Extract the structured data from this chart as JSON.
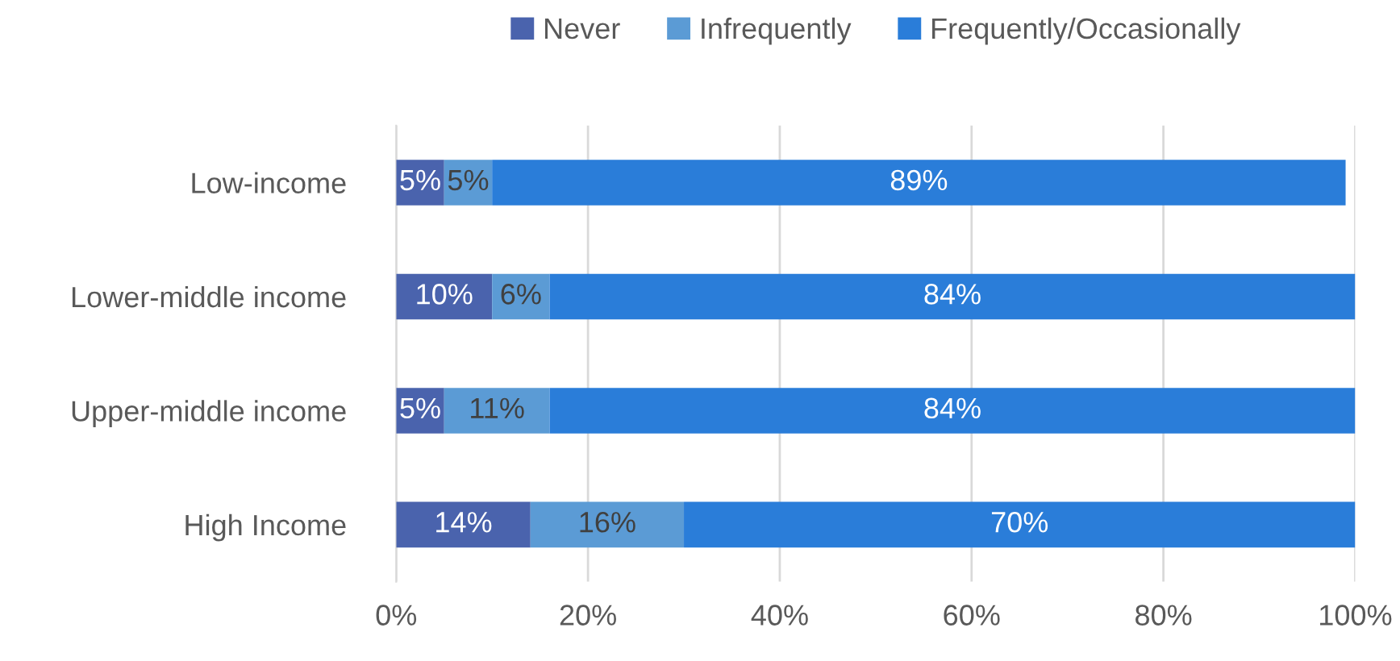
{
  "chart_data": {
    "type": "bar",
    "orientation": "horizontal",
    "stacked": true,
    "categories": [
      "Low-income",
      "Lower-middle income",
      "Upper-middle income",
      "High Income"
    ],
    "series": [
      {
        "name": "Never",
        "color": "#4a63ad",
        "values": [
          5,
          10,
          5,
          14
        ],
        "value_labels": [
          "5%",
          "10%",
          "5%",
          "14%"
        ]
      },
      {
        "name": "Infrequently",
        "color": "#5b9bd5",
        "values": [
          5,
          6,
          11,
          16
        ],
        "value_labels": [
          "5%",
          "6%",
          "11%",
          "16%"
        ]
      },
      {
        "name": "Frequently/Occasionally",
        "color": "#2a7dd9",
        "values": [
          89,
          84,
          84,
          70
        ],
        "value_labels": [
          "89%",
          "84%",
          "84%",
          "70%"
        ]
      }
    ],
    "xlim": [
      0,
      100
    ],
    "xticks": [
      {
        "value": 0,
        "label": "0%"
      },
      {
        "value": 20,
        "label": "20%"
      },
      {
        "value": 40,
        "label": "40%"
      },
      {
        "value": 60,
        "label": "60%"
      },
      {
        "value": 80,
        "label": "80%"
      },
      {
        "value": 100,
        "label": "100%"
      }
    ],
    "grid": "x",
    "legend": "top"
  }
}
